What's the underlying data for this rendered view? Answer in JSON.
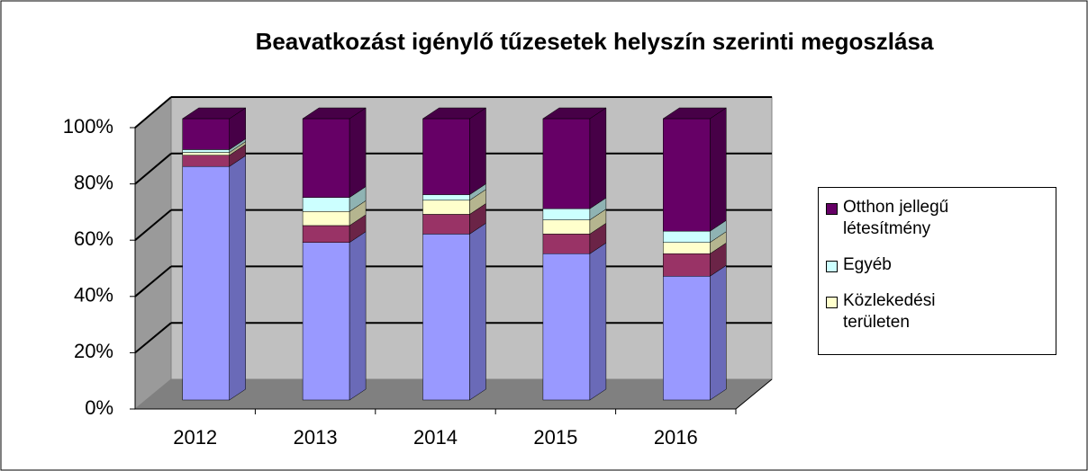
{
  "chart_data": {
    "type": "bar3d_stacked",
    "title": "Beavatkozást igénylő tűzesetek helyszín szerinti megoszlása",
    "categories": [
      "2012",
      "2013",
      "2014",
      "2015",
      "2016"
    ],
    "series": [
      {
        "color": "#9999ff",
        "side": "#6a6ab8",
        "values": [
          83,
          56,
          59,
          52,
          44
        ]
      },
      {
        "color": "#993366",
        "side": "#6b2447",
        "values": [
          4,
          6,
          7,
          7,
          8
        ]
      },
      {
        "name": "Közlekedési területen",
        "color": "#ffffcc",
        "side": "#b5b58f",
        "values": [
          1,
          5,
          5,
          5,
          4
        ]
      },
      {
        "name": "Egyéb",
        "color": "#ccffff",
        "side": "#8fb3b3",
        "values": [
          1,
          5,
          2,
          4,
          4
        ]
      },
      {
        "name": "Otthon jellegű létesítmény",
        "color": "#660066",
        "side": "#470047",
        "values": [
          11,
          28,
          27,
          32,
          40
        ]
      }
    ],
    "ylim": [
      0,
      100
    ],
    "yticks": [
      {
        "value": 0,
        "label": "0%"
      },
      {
        "value": 20,
        "label": "20%"
      },
      {
        "value": 40,
        "label": "40%"
      },
      {
        "value": 60,
        "label": "60%"
      },
      {
        "value": 80,
        "label": "80%"
      },
      {
        "value": 100,
        "label": "100%"
      }
    ],
    "grid": true
  }
}
